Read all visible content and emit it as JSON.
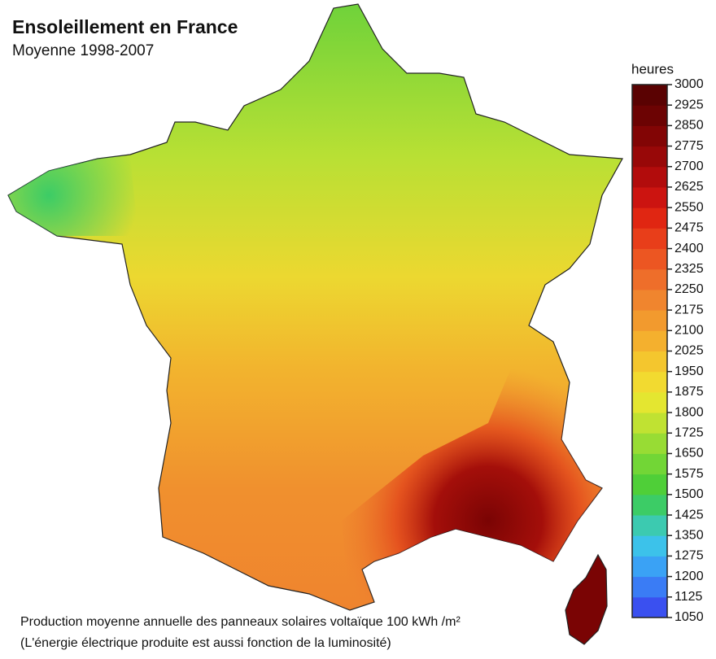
{
  "header": {
    "title": "Ensoleillement en France",
    "subtitle": "Moyenne 1998-2007"
  },
  "legend": {
    "label": "heures",
    "lim": [
      1050,
      3000
    ],
    "ticks": [
      3000,
      2925,
      2850,
      2775,
      2700,
      2625,
      2550,
      2475,
      2400,
      2325,
      2250,
      2175,
      2100,
      2025,
      1950,
      1875,
      1800,
      1725,
      1650,
      1575,
      1500,
      1425,
      1350,
      1275,
      1200,
      1125,
      1050
    ],
    "colors": [
      "#3a50f0",
      "#3a7cf5",
      "#3aa2f5",
      "#3cc2ea",
      "#3ccab0",
      "#3ccc66",
      "#4fcf38",
      "#72d636",
      "#98dc34",
      "#c0e232",
      "#e4e630",
      "#f2da30",
      "#f4c62e",
      "#f4b02e",
      "#f29a2e",
      "#f0852e",
      "#ee6e2a",
      "#ec5622",
      "#e83e1a",
      "#e02612",
      "#cc1410",
      "#b20c0c",
      "#980808",
      "#820505",
      "#6c0303",
      "#5a0202"
    ]
  },
  "footer": {
    "line1": "Production moyenne annuelle des panneaux solaires voltaïque 100 kWh /m²",
    "line2": "(L'énergie électrique produite est aussi fonction de la luminosité)"
  }
}
